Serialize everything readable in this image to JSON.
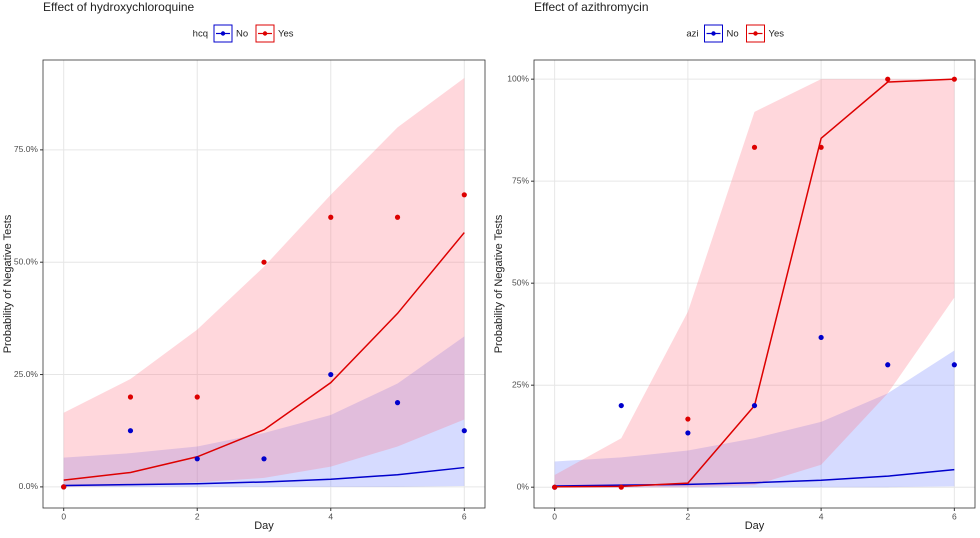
{
  "chart_data": [
    {
      "type": "line",
      "title": "Effect of hydroxychloroquine",
      "xlabel": "Day",
      "ylabel": "Probability of Negative Tests",
      "legend_title": "hcq",
      "x": [
        0,
        1,
        2,
        3,
        4,
        5,
        6
      ],
      "xlim": [
        -0.31,
        6.31
      ],
      "xticks": [
        0,
        2,
        4,
        6
      ],
      "ylim": [
        -4.7,
        95
      ],
      "yticks": [
        {
          "value": 0,
          "label": "0.0%"
        },
        {
          "value": 25,
          "label": "25.0%"
        },
        {
          "value": 50,
          "label": "50.0%"
        },
        {
          "value": 75,
          "label": "75.0%"
        }
      ],
      "grid": true,
      "legend": "top",
      "series": [
        {
          "name": "No",
          "color": "#0000cc",
          "band_color": "rgba(90,110,255,0.25)",
          "values": [
            0.3,
            0.5,
            0.7,
            1.1,
            1.7,
            2.7,
            4.3
          ],
          "observed": [
            0,
            12.5,
            6.25,
            6.25,
            25,
            18.75,
            12.5
          ],
          "upper": [
            6.5,
            7.5,
            9,
            12,
            16,
            23,
            33.5
          ],
          "lower": [
            0,
            0,
            0,
            0,
            0,
            0,
            0.2
          ]
        },
        {
          "name": "Yes",
          "color": "#dd0000",
          "band_color": "rgba(255,110,130,0.28)",
          "values": [
            1.5,
            3.2,
            6.7,
            12.7,
            23.2,
            38.6,
            56.6
          ],
          "observed": [
            0,
            20,
            20,
            50,
            60,
            60,
            65
          ],
          "upper": [
            16.5,
            24,
            35,
            49,
            65,
            80,
            91
          ],
          "lower": [
            0,
            0.3,
            1,
            2,
            4.5,
            9,
            15
          ]
        }
      ]
    },
    {
      "type": "line",
      "title": "Effect of azithromycin",
      "xlabel": "Day",
      "ylabel": "Probability of Negative Tests",
      "legend_title": "azi",
      "x": [
        0,
        1,
        2,
        3,
        4,
        5,
        6
      ],
      "xlim": [
        -0.31,
        6.31
      ],
      "xticks": [
        0,
        2,
        4,
        6
      ],
      "ylim": [
        -5.1,
        104.7
      ],
      "yticks": [
        {
          "value": 0,
          "label": "0%"
        },
        {
          "value": 25,
          "label": "25%"
        },
        {
          "value": 50,
          "label": "50%"
        },
        {
          "value": 75,
          "label": "75%"
        },
        {
          "value": 100,
          "label": "100%"
        }
      ],
      "grid": true,
      "legend": "top",
      "series": [
        {
          "name": "No",
          "color": "#0000cc",
          "band_color": "rgba(90,110,255,0.25)",
          "values": [
            0.3,
            0.5,
            0.7,
            1.1,
            1.7,
            2.7,
            4.3
          ],
          "observed": [
            0,
            20,
            13.3,
            20,
            36.7,
            30,
            30
          ],
          "upper": [
            6.3,
            7.3,
            9,
            12,
            16,
            23,
            33.5
          ],
          "lower": [
            0,
            0,
            0,
            0,
            0,
            0,
            0.2
          ]
        },
        {
          "name": "Yes",
          "color": "#dd0000",
          "band_color": "rgba(255,110,130,0.28)",
          "values": [
            0.1,
            0.2,
            1,
            20,
            85.5,
            99.3,
            100
          ],
          "observed": [
            0,
            0,
            16.7,
            83.3,
            83.3,
            100,
            100
          ],
          "upper": [
            3,
            12,
            43,
            92,
            100,
            100,
            100
          ],
          "lower": [
            0,
            0,
            0,
            0.5,
            5.5,
            23,
            46.5
          ]
        }
      ]
    }
  ]
}
